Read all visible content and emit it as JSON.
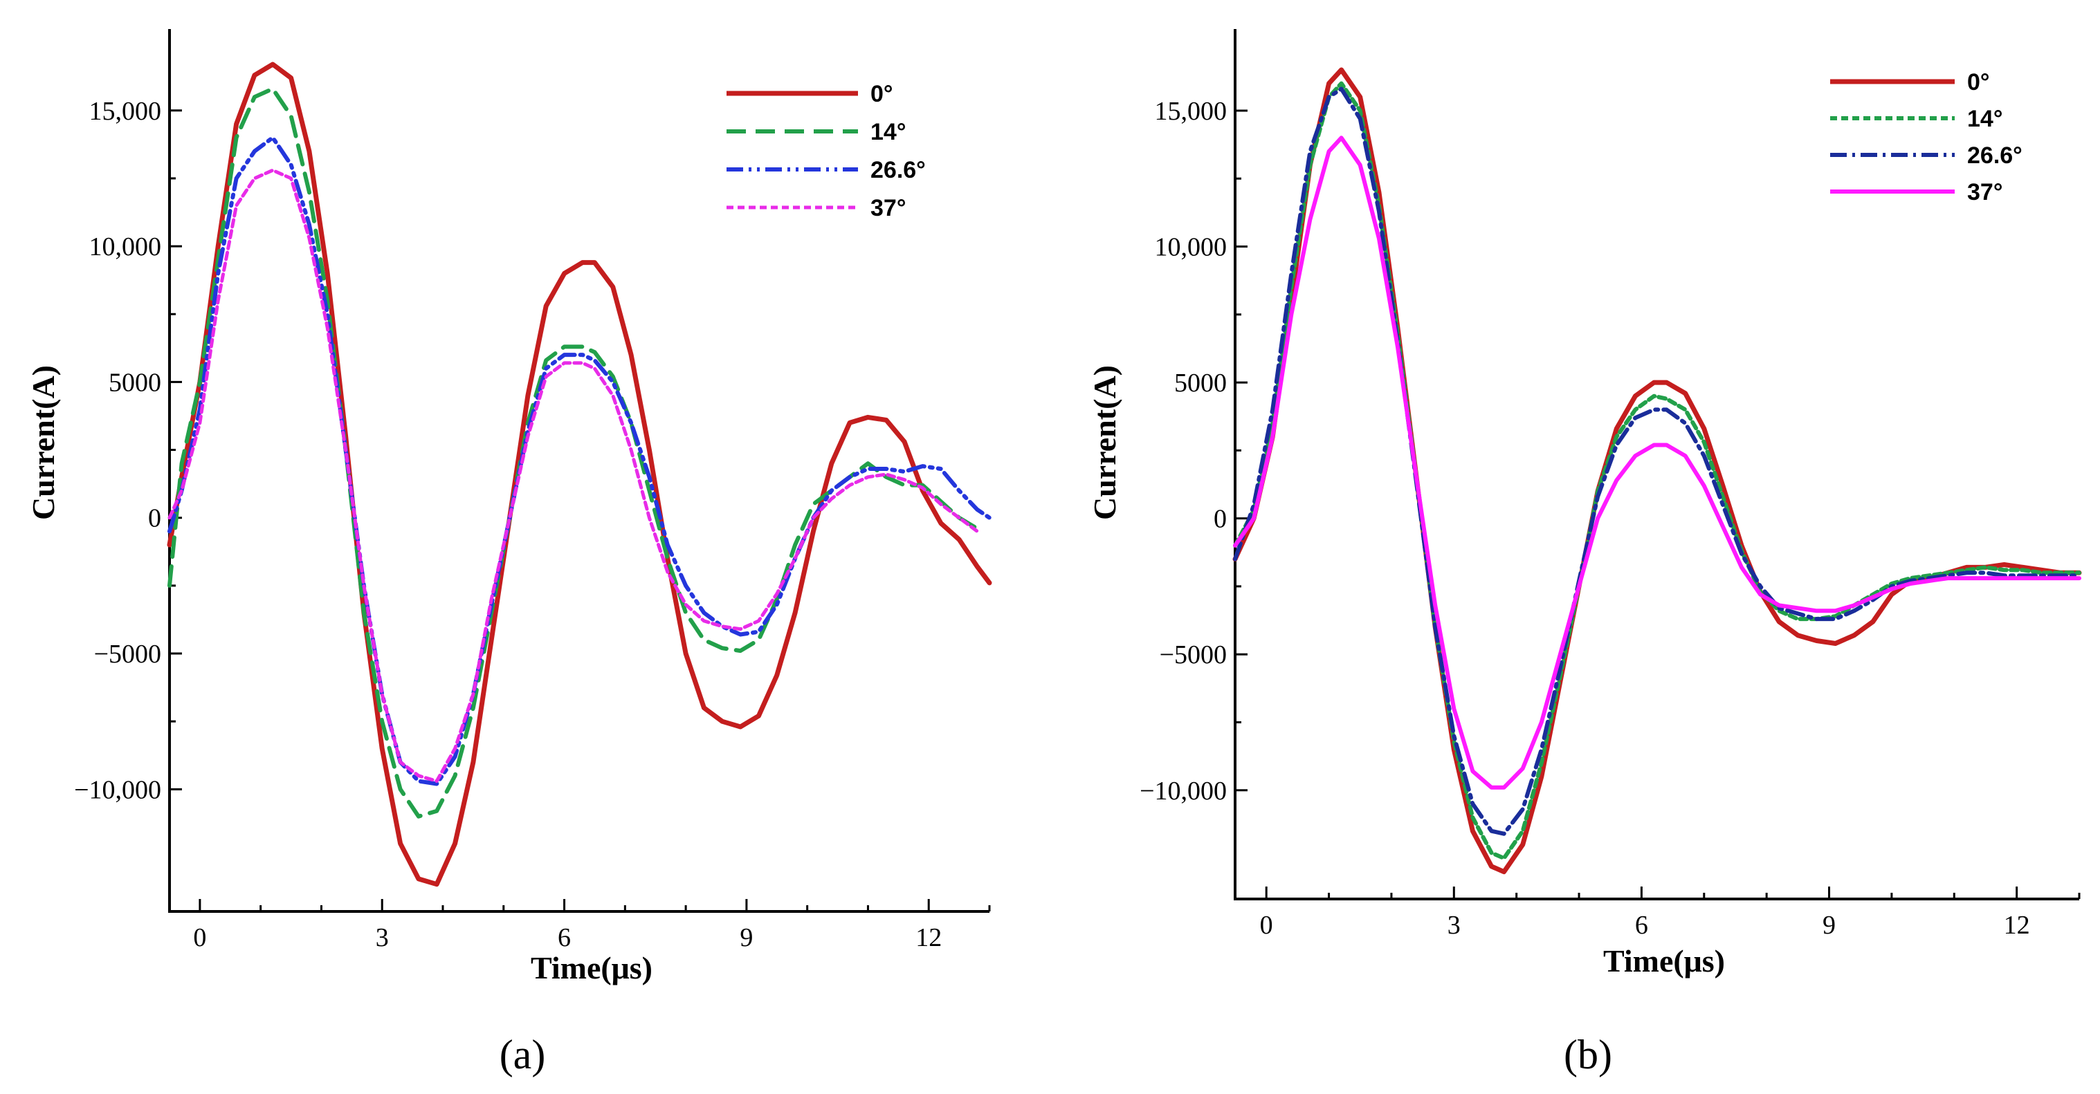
{
  "chart_data": [
    {
      "id": "a",
      "type": "line",
      "caption": "(a)",
      "xlabel": "Time(μs)",
      "ylabel": "Current(A)",
      "xlim": [
        -0.5,
        13
      ],
      "ylim": [
        -14500,
        18000
      ],
      "xticks": [
        0,
        3,
        6,
        9,
        12
      ],
      "yticks": [
        -10000,
        -5000,
        0,
        5000,
        10000,
        15000
      ],
      "xtick_labels": [
        "0",
        "3",
        "6",
        "9",
        "12"
      ],
      "ytick_labels": [
        "−10,000",
        "−5000",
        "0",
        "5000",
        "10,000",
        "15,000"
      ],
      "legend_position": "top-right",
      "series": [
        {
          "name": "0°",
          "color": "#c41e1e",
          "dash": "solid",
          "width": 7,
          "x": [
            -0.5,
            -0.3,
            0,
            0.3,
            0.6,
            0.9,
            1.2,
            1.5,
            1.8,
            2.1,
            2.4,
            2.7,
            3.0,
            3.3,
            3.6,
            3.9,
            4.2,
            4.5,
            4.8,
            5.1,
            5.4,
            5.7,
            6.0,
            6.3,
            6.5,
            6.8,
            7.1,
            7.4,
            7.7,
            8.0,
            8.3,
            8.6,
            8.9,
            9.2,
            9.5,
            9.8,
            10.1,
            10.4,
            10.7,
            11.0,
            11.3,
            11.6,
            11.9,
            12.2,
            12.5,
            12.8,
            13.0
          ],
          "y": [
            -1000,
            1500,
            5000,
            10000,
            14500,
            16300,
            16700,
            16200,
            13500,
            9000,
            3000,
            -3500,
            -8500,
            -12000,
            -13300,
            -13500,
            -12000,
            -9000,
            -4500,
            0,
            4500,
            7800,
            9000,
            9400,
            9400,
            8500,
            6000,
            2500,
            -1500,
            -5000,
            -7000,
            -7500,
            -7700,
            -7300,
            -5800,
            -3500,
            -500,
            2000,
            3500,
            3700,
            3600,
            2800,
            1000,
            -200,
            -800,
            -1800,
            -2400
          ]
        },
        {
          "name": "14°",
          "color": "#22a04a",
          "dash": "28 14",
          "width": 6,
          "x": [
            -0.5,
            -0.3,
            0,
            0.3,
            0.6,
            0.9,
            1.2,
            1.5,
            1.8,
            2.1,
            2.4,
            2.7,
            3.0,
            3.3,
            3.6,
            3.9,
            4.2,
            4.5,
            4.8,
            5.1,
            5.4,
            5.7,
            6.0,
            6.3,
            6.5,
            6.8,
            7.1,
            7.4,
            7.7,
            8.0,
            8.3,
            8.6,
            8.9,
            9.2,
            9.5,
            9.8,
            10.1,
            10.4,
            10.7,
            11.0,
            11.3,
            11.6,
            11.9,
            12.2,
            12.5,
            12.8
          ],
          "y": [
            -2500,
            2000,
            5000,
            9500,
            14000,
            15500,
            15800,
            14800,
            12000,
            8000,
            2500,
            -3500,
            -7500,
            -10000,
            -11000,
            -10800,
            -9500,
            -7000,
            -3500,
            0,
            3500,
            5800,
            6300,
            6300,
            6100,
            5200,
            3500,
            1000,
            -1500,
            -3500,
            -4500,
            -4800,
            -4900,
            -4500,
            -3000,
            -1000,
            500,
            1000,
            1500,
            2000,
            1500,
            1200,
            1200,
            600,
            0,
            -400
          ]
        },
        {
          "name": "26.6°",
          "color": "#2436dc",
          "dash": "24 8 4 8 4 8",
          "width": 6,
          "x": [
            -0.5,
            -0.3,
            0,
            0.3,
            0.6,
            0.9,
            1.2,
            1.5,
            1.8,
            2.1,
            2.4,
            2.7,
            3.0,
            3.3,
            3.6,
            3.9,
            4.2,
            4.5,
            4.8,
            5.1,
            5.4,
            5.7,
            6.0,
            6.3,
            6.5,
            6.8,
            7.1,
            7.4,
            7.7,
            8.0,
            8.3,
            8.6,
            8.9,
            9.2,
            9.5,
            9.8,
            10.1,
            10.4,
            10.7,
            11.0,
            11.3,
            11.6,
            11.9,
            12.2,
            12.5,
            12.8,
            13.0
          ],
          "y": [
            -500,
            1000,
            4000,
            9000,
            12500,
            13500,
            14000,
            13000,
            10800,
            7500,
            2500,
            -2500,
            -6500,
            -9000,
            -9700,
            -9800,
            -8800,
            -6500,
            -3200,
            0,
            3200,
            5500,
            6000,
            6000,
            5800,
            5000,
            3500,
            1500,
            -1000,
            -2500,
            -3500,
            -4000,
            -4300,
            -4200,
            -3200,
            -1500,
            0,
            1000,
            1500,
            1800,
            1800,
            1700,
            1900,
            1800,
            1000,
            300,
            0
          ]
        },
        {
          "name": "37°",
          "color": "#e82be8",
          "dash": "10 6",
          "width": 5,
          "x": [
            -0.5,
            -0.3,
            0,
            0.3,
            0.6,
            0.9,
            1.2,
            1.5,
            1.8,
            2.1,
            2.4,
            2.7,
            3.0,
            3.3,
            3.6,
            3.9,
            4.2,
            4.5,
            4.8,
            5.1,
            5.4,
            5.7,
            6.0,
            6.3,
            6.5,
            6.8,
            7.1,
            7.4,
            7.7,
            8.0,
            8.3,
            8.6,
            8.9,
            9.2,
            9.5,
            9.8,
            10.1,
            10.4,
            10.7,
            11.0,
            11.3,
            11.6,
            11.9,
            12.2,
            12.5,
            12.8
          ],
          "y": [
            0,
            1000,
            3500,
            8000,
            11500,
            12500,
            12800,
            12500,
            10300,
            7000,
            2500,
            -2500,
            -6500,
            -9000,
            -9500,
            -9700,
            -8500,
            -6500,
            -3000,
            0,
            3000,
            5200,
            5700,
            5700,
            5500,
            4500,
            2500,
            0,
            -2000,
            -3200,
            -3800,
            -4000,
            -4100,
            -3800,
            -2800,
            -1500,
            0,
            700,
            1200,
            1500,
            1600,
            1400,
            1100,
            500,
            0,
            -500
          ]
        }
      ]
    },
    {
      "id": "b",
      "type": "line",
      "caption": "(b)",
      "xlabel": "Time(μs)",
      "ylabel": "Current(A)",
      "xlim": [
        -0.5,
        13
      ],
      "ylim": [
        -14000,
        18000
      ],
      "xticks": [
        0,
        3,
        6,
        9,
        12
      ],
      "yticks": [
        -10000,
        -5000,
        0,
        5000,
        10000,
        15000
      ],
      "xtick_labels": [
        "0",
        "3",
        "6",
        "9",
        "12"
      ],
      "ytick_labels": [
        "−10,000",
        "−5000",
        "0",
        "5000",
        "10,000",
        "15,000"
      ],
      "legend_position": "top-right",
      "series": [
        {
          "name": "0°",
          "color": "#c41e1e",
          "dash": "solid",
          "width": 7,
          "x": [
            -0.5,
            -0.2,
            0.1,
            0.4,
            0.7,
            1.0,
            1.2,
            1.5,
            1.8,
            2.1,
            2.4,
            2.7,
            3.0,
            3.3,
            3.6,
            3.8,
            4.1,
            4.4,
            4.7,
            5.0,
            5.3,
            5.6,
            5.9,
            6.2,
            6.4,
            6.7,
            7.0,
            7.3,
            7.6,
            7.9,
            8.2,
            8.5,
            8.8,
            9.1,
            9.4,
            9.7,
            10.0,
            10.3,
            10.6,
            10.9,
            11.2,
            11.5,
            11.8,
            12.1,
            12.4,
            12.7,
            13.0
          ],
          "y": [
            -1500,
            0,
            3000,
            8000,
            13000,
            16000,
            16500,
            15500,
            12000,
            7000,
            1500,
            -4000,
            -8500,
            -11500,
            -12800,
            -13000,
            -12000,
            -9500,
            -6000,
            -2500,
            1000,
            3300,
            4500,
            5000,
            5000,
            4600,
            3300,
            1200,
            -1000,
            -2700,
            -3800,
            -4300,
            -4500,
            -4600,
            -4300,
            -3800,
            -2800,
            -2300,
            -2200,
            -2000,
            -1800,
            -1800,
            -1700,
            -1800,
            -1900,
            -2000,
            -2000
          ]
        },
        {
          "name": "14°",
          "color": "#22a04a",
          "dash": "10 6",
          "width": 6,
          "x": [
            -0.5,
            -0.2,
            0.1,
            0.4,
            0.7,
            1.0,
            1.2,
            1.5,
            1.8,
            2.1,
            2.4,
            2.7,
            3.0,
            3.3,
            3.6,
            3.8,
            4.1,
            4.4,
            4.7,
            5.0,
            5.3,
            5.6,
            5.9,
            6.2,
            6.4,
            6.7,
            7.0,
            7.3,
            7.6,
            7.9,
            8.2,
            8.5,
            8.8,
            9.1,
            9.4,
            9.7,
            10.0,
            10.3,
            10.6,
            10.9,
            11.2,
            11.5,
            11.8,
            12.1,
            12.4,
            12.7,
            13.0
          ],
          "y": [
            -1000,
            300,
            3500,
            8500,
            13000,
            15500,
            16000,
            15000,
            11500,
            6800,
            1500,
            -4000,
            -8200,
            -11000,
            -12300,
            -12500,
            -11500,
            -9000,
            -5800,
            -2500,
            1000,
            3000,
            4000,
            4500,
            4400,
            4000,
            2800,
            800,
            -1200,
            -2700,
            -3400,
            -3700,
            -3700,
            -3600,
            -3200,
            -2800,
            -2400,
            -2200,
            -2100,
            -2000,
            -1900,
            -1800,
            -1900,
            -1900,
            -2000,
            -2000,
            -2000
          ]
        },
        {
          "name": "26.6°",
          "color": "#1a2d9a",
          "dash": "24 8 4 8",
          "width": 6,
          "x": [
            -0.5,
            -0.2,
            0.1,
            0.4,
            0.7,
            1.0,
            1.2,
            1.5,
            1.8,
            2.1,
            2.4,
            2.7,
            3.0,
            3.3,
            3.6,
            3.8,
            4.1,
            4.4,
            4.7,
            5.0,
            5.3,
            5.6,
            5.9,
            6.2,
            6.4,
            6.7,
            7.0,
            7.3,
            7.6,
            7.9,
            8.2,
            8.5,
            8.8,
            9.1,
            9.4,
            9.7,
            10.0,
            10.3,
            10.6,
            10.9,
            11.2,
            11.5,
            11.8,
            12.1,
            12.4,
            12.7,
            13.0
          ],
          "y": [
            -1500,
            500,
            4000,
            9000,
            13500,
            15500,
            15800,
            14700,
            11300,
            6500,
            1300,
            -4000,
            -8000,
            -10500,
            -11500,
            -11600,
            -10700,
            -8500,
            -5500,
            -2300,
            800,
            2700,
            3700,
            4000,
            4000,
            3500,
            2300,
            500,
            -1300,
            -2500,
            -3300,
            -3500,
            -3700,
            -3700,
            -3400,
            -3000,
            -2500,
            -2300,
            -2200,
            -2100,
            -2000,
            -2000,
            -2100,
            -2100,
            -2100,
            -2100,
            -2100
          ]
        },
        {
          "name": "37°",
          "color": "#ff1aff",
          "dash": "solid",
          "width": 6,
          "x": [
            -0.5,
            -0.2,
            0.1,
            0.4,
            0.7,
            1.0,
            1.2,
            1.5,
            1.8,
            2.1,
            2.4,
            2.7,
            3.0,
            3.3,
            3.6,
            3.8,
            4.1,
            4.4,
            4.7,
            5.0,
            5.3,
            5.6,
            5.9,
            6.2,
            6.4,
            6.7,
            7.0,
            7.3,
            7.6,
            7.9,
            8.2,
            8.5,
            8.8,
            9.1,
            9.4,
            9.7,
            10.0,
            10.3,
            10.6,
            10.9,
            11.2,
            11.5,
            11.8,
            12.1,
            12.4,
            12.7,
            13.0
          ],
          "y": [
            -1000,
            0,
            3000,
            7500,
            11000,
            13500,
            14000,
            13000,
            10300,
            6300,
            1500,
            -3200,
            -7000,
            -9300,
            -9900,
            -9900,
            -9200,
            -7500,
            -5000,
            -2500,
            0,
            1400,
            2300,
            2700,
            2700,
            2300,
            1200,
            -300,
            -1800,
            -2800,
            -3200,
            -3300,
            -3400,
            -3400,
            -3200,
            -2900,
            -2600,
            -2400,
            -2300,
            -2200,
            -2200,
            -2200,
            -2200,
            -2200,
            -2200,
            -2200,
            -2200
          ]
        }
      ]
    }
  ]
}
